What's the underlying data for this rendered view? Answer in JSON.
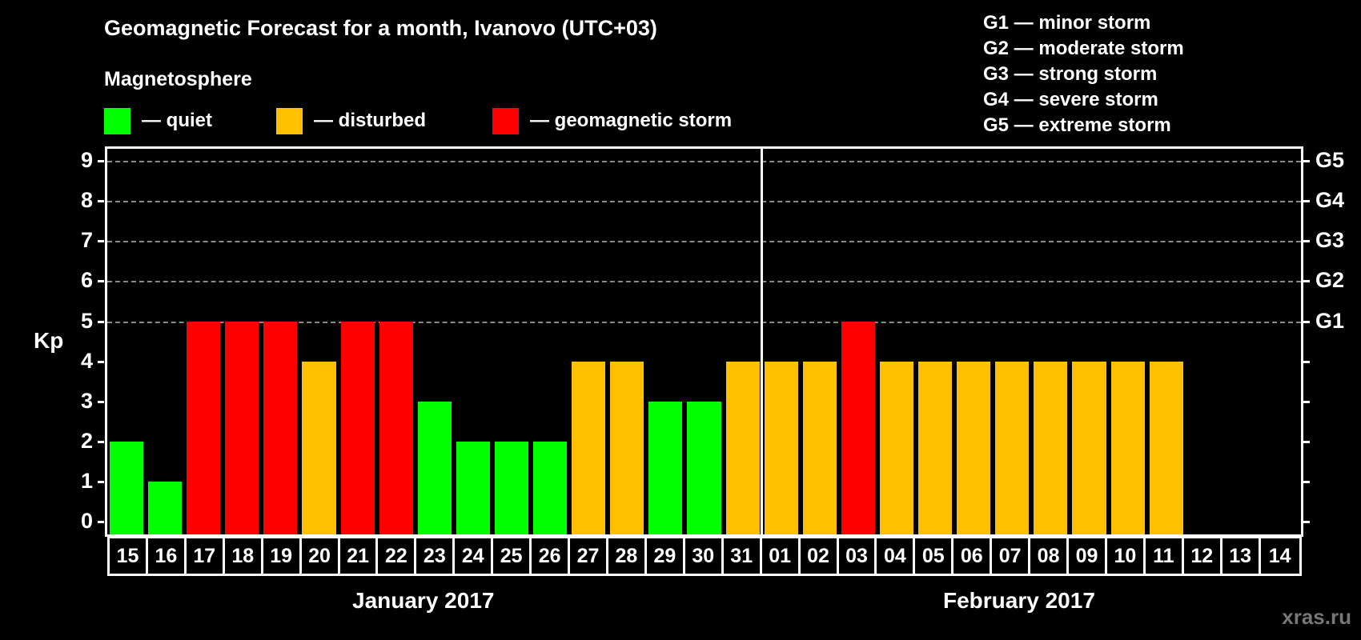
{
  "title": "Geomagnetic Forecast for a month, Ivanovo (UTC+03)",
  "subtitle": "Magnetosphere",
  "legend": [
    {
      "label": "— quiet",
      "color": "#00ff00"
    },
    {
      "label": "— disturbed",
      "color": "#ffc000"
    },
    {
      "label": "— geomagnetic storm",
      "color": "#ff0000"
    }
  ],
  "g_legend": [
    "G1 — minor storm",
    "G2 — moderate storm",
    "G3 — strong storm",
    "G4 — severe storm",
    "G5 — extreme storm"
  ],
  "y_axis_label": "Kp",
  "y_ticks": [
    "0",
    "1",
    "2",
    "3",
    "4",
    "5",
    "6",
    "7",
    "8",
    "9"
  ],
  "g_ticks": [
    {
      "label": "G1",
      "kp": 5
    },
    {
      "label": "G2",
      "kp": 6
    },
    {
      "label": "G3",
      "kp": 7
    },
    {
      "label": "G4",
      "kp": 8
    },
    {
      "label": "G5",
      "kp": 9
    }
  ],
  "months": [
    "January 2017",
    "February 2017"
  ],
  "watermark": "xras.ru",
  "colors": {
    "quiet": "#00ff00",
    "disturbed": "#ffc000",
    "storm": "#ff0000"
  },
  "chart_data": {
    "type": "bar",
    "title": "Geomagnetic Forecast for a month, Ivanovo (UTC+03)",
    "xlabel": "January 2017 / February 2017",
    "ylabel": "Kp",
    "ylim": [
      0,
      9
    ],
    "grid": "dashed horizontal at Kp 5–9",
    "secondary_y_labels": {
      "5": "G1",
      "6": "G2",
      "7": "G3",
      "8": "G4",
      "9": "G5"
    },
    "legend": [
      "quiet",
      "disturbed",
      "geomagnetic storm"
    ],
    "categories": [
      "15",
      "16",
      "17",
      "18",
      "19",
      "20",
      "21",
      "22",
      "23",
      "24",
      "25",
      "26",
      "27",
      "28",
      "29",
      "30",
      "31",
      "01",
      "02",
      "03",
      "04",
      "05",
      "06",
      "07",
      "08",
      "09",
      "10",
      "11",
      "12",
      "13",
      "14"
    ],
    "values": [
      2,
      1,
      5,
      5,
      5,
      4,
      5,
      5,
      3,
      2,
      2,
      2,
      4,
      4,
      3,
      3,
      4,
      4,
      4,
      5,
      4,
      4,
      4,
      4,
      4,
      4,
      4,
      4,
      null,
      null,
      null
    ],
    "status": [
      "quiet",
      "quiet",
      "storm",
      "storm",
      "storm",
      "disturbed",
      "storm",
      "storm",
      "quiet",
      "quiet",
      "quiet",
      "quiet",
      "disturbed",
      "disturbed",
      "quiet",
      "quiet",
      "disturbed",
      "disturbed",
      "disturbed",
      "storm",
      "disturbed",
      "disturbed",
      "disturbed",
      "disturbed",
      "disturbed",
      "disturbed",
      "disturbed",
      "disturbed",
      null,
      null,
      null
    ]
  }
}
